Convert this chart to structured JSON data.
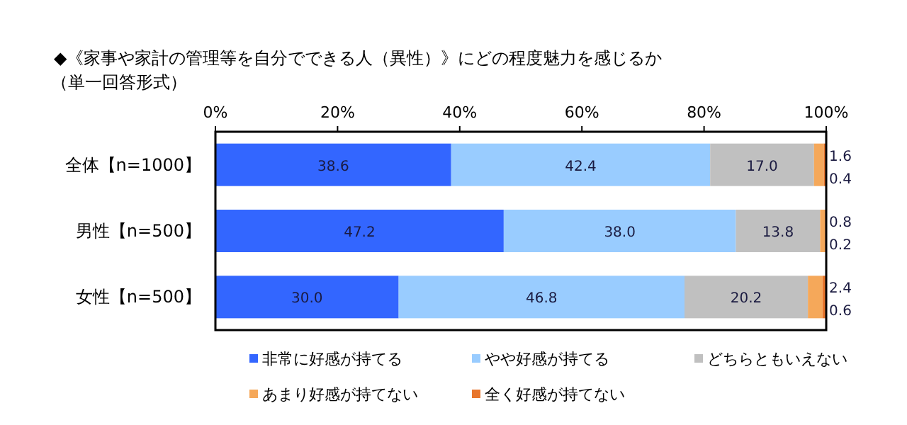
{
  "chart_data": {
    "type": "bar",
    "orientation": "horizontal",
    "stacked": true,
    "title": "◆《家事や家計の管理等を自分でできる人（異性）》にどの程度魅力を感じるか",
    "subtitle": "（単一回答形式）",
    "categories": [
      "全体【n=1000】",
      "男性【n=500】",
      "女性【n=500】"
    ],
    "series": [
      {
        "name": "非常に好感が持てる",
        "color": "#3366ff",
        "values": [
          38.6,
          47.2,
          30.0
        ],
        "value_labels": [
          "38.6",
          "47.2",
          "30.0"
        ]
      },
      {
        "name": "やや好感が持てる",
        "color": "#99ccff",
        "values": [
          42.4,
          38.0,
          46.8
        ],
        "value_labels": [
          "42.4",
          "38.0",
          "46.8"
        ]
      },
      {
        "name": "どちらともいえない",
        "color": "#c0c0c0",
        "values": [
          17.0,
          13.8,
          20.2
        ],
        "value_labels": [
          "17.0",
          "13.8",
          "20.2"
        ]
      },
      {
        "name": "あまり好感が持てない",
        "color": "#f5a85a",
        "values": [
          1.6,
          0.8,
          2.4
        ],
        "value_labels": [
          "1.6",
          "0.8",
          "2.4"
        ]
      },
      {
        "name": "全く好感が持てない",
        "color": "#e8762d",
        "values": [
          0.4,
          0.2,
          0.6
        ],
        "value_labels": [
          "0.4",
          "0.2",
          "0.6"
        ]
      }
    ],
    "xlim": [
      0,
      100
    ],
    "xticks": [
      {
        "value": 0,
        "label": "0%"
      },
      {
        "value": 20,
        "label": "20%"
      },
      {
        "value": 40,
        "label": "40%"
      },
      {
        "value": 60,
        "label": "60%"
      },
      {
        "value": 80,
        "label": "80%"
      },
      {
        "value": 100,
        "label": "100%"
      }
    ],
    "legend": "bottom",
    "grid": false
  }
}
